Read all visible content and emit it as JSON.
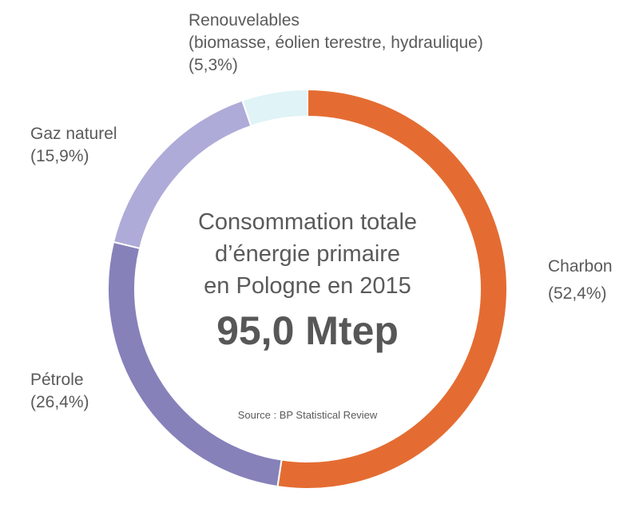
{
  "chart_data": {
    "type": "pie",
    "title_lines": [
      "Consommation totale",
      "d’énergie primaire",
      "en Pologne en 2015"
    ],
    "total_value": "95,0 Mtep",
    "source": "Source : BP Statistical Review",
    "slices": [
      {
        "name_lines": [
          "Charbon"
        ],
        "value": 52.4,
        "value_label": "(52,4%)",
        "color": "#e46c32"
      },
      {
        "name_lines": [
          "Pétrole"
        ],
        "value": 26.4,
        "value_label": "(26,4%)",
        "color": "#8681b9"
      },
      {
        "name_lines": [
          "Gaz naturel"
        ],
        "value": 15.9,
        "value_label": "(15,9%)",
        "color": "#aeabd8"
      },
      {
        "name_lines": [
          "Renouvelables",
          "(biomasse, éolien terestre, hydraulique)"
        ],
        "value": 5.3,
        "value_label": "(5,3%)",
        "color": "#e0f3f6"
      }
    ]
  }
}
